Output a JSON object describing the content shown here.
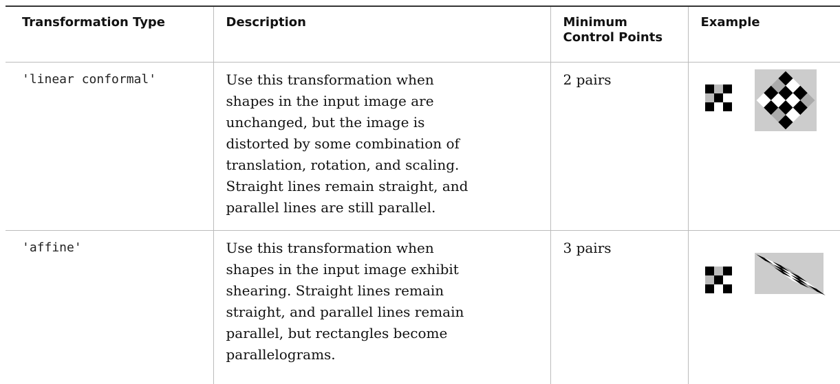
{
  "table": {
    "header": [
      "Transformation Type",
      "Description",
      [
        "Minimum",
        "Control Points"
      ],
      "Example"
    ],
    "rows": [
      [
        "'linear conformal'",
        [
          "Use this transformation when",
          "shapes in the input image are",
          "unchanged, but the image is",
          "distorted by some combination of",
          "translation, rotation, and scaling.",
          "Straight lines remain straight, and",
          "parallel lines are still parallel."
        ],
        "2 pairs"
      ],
      [
        "'affine'",
        [
          "Use this transformation when",
          "shapes in the input image exhibit",
          "shearing. Straight lines remain",
          "straight, and parallel lines remain",
          "parallel, but rectangles become",
          "parallelograms."
        ],
        "3 pairs"
      ]
    ]
  }
}
